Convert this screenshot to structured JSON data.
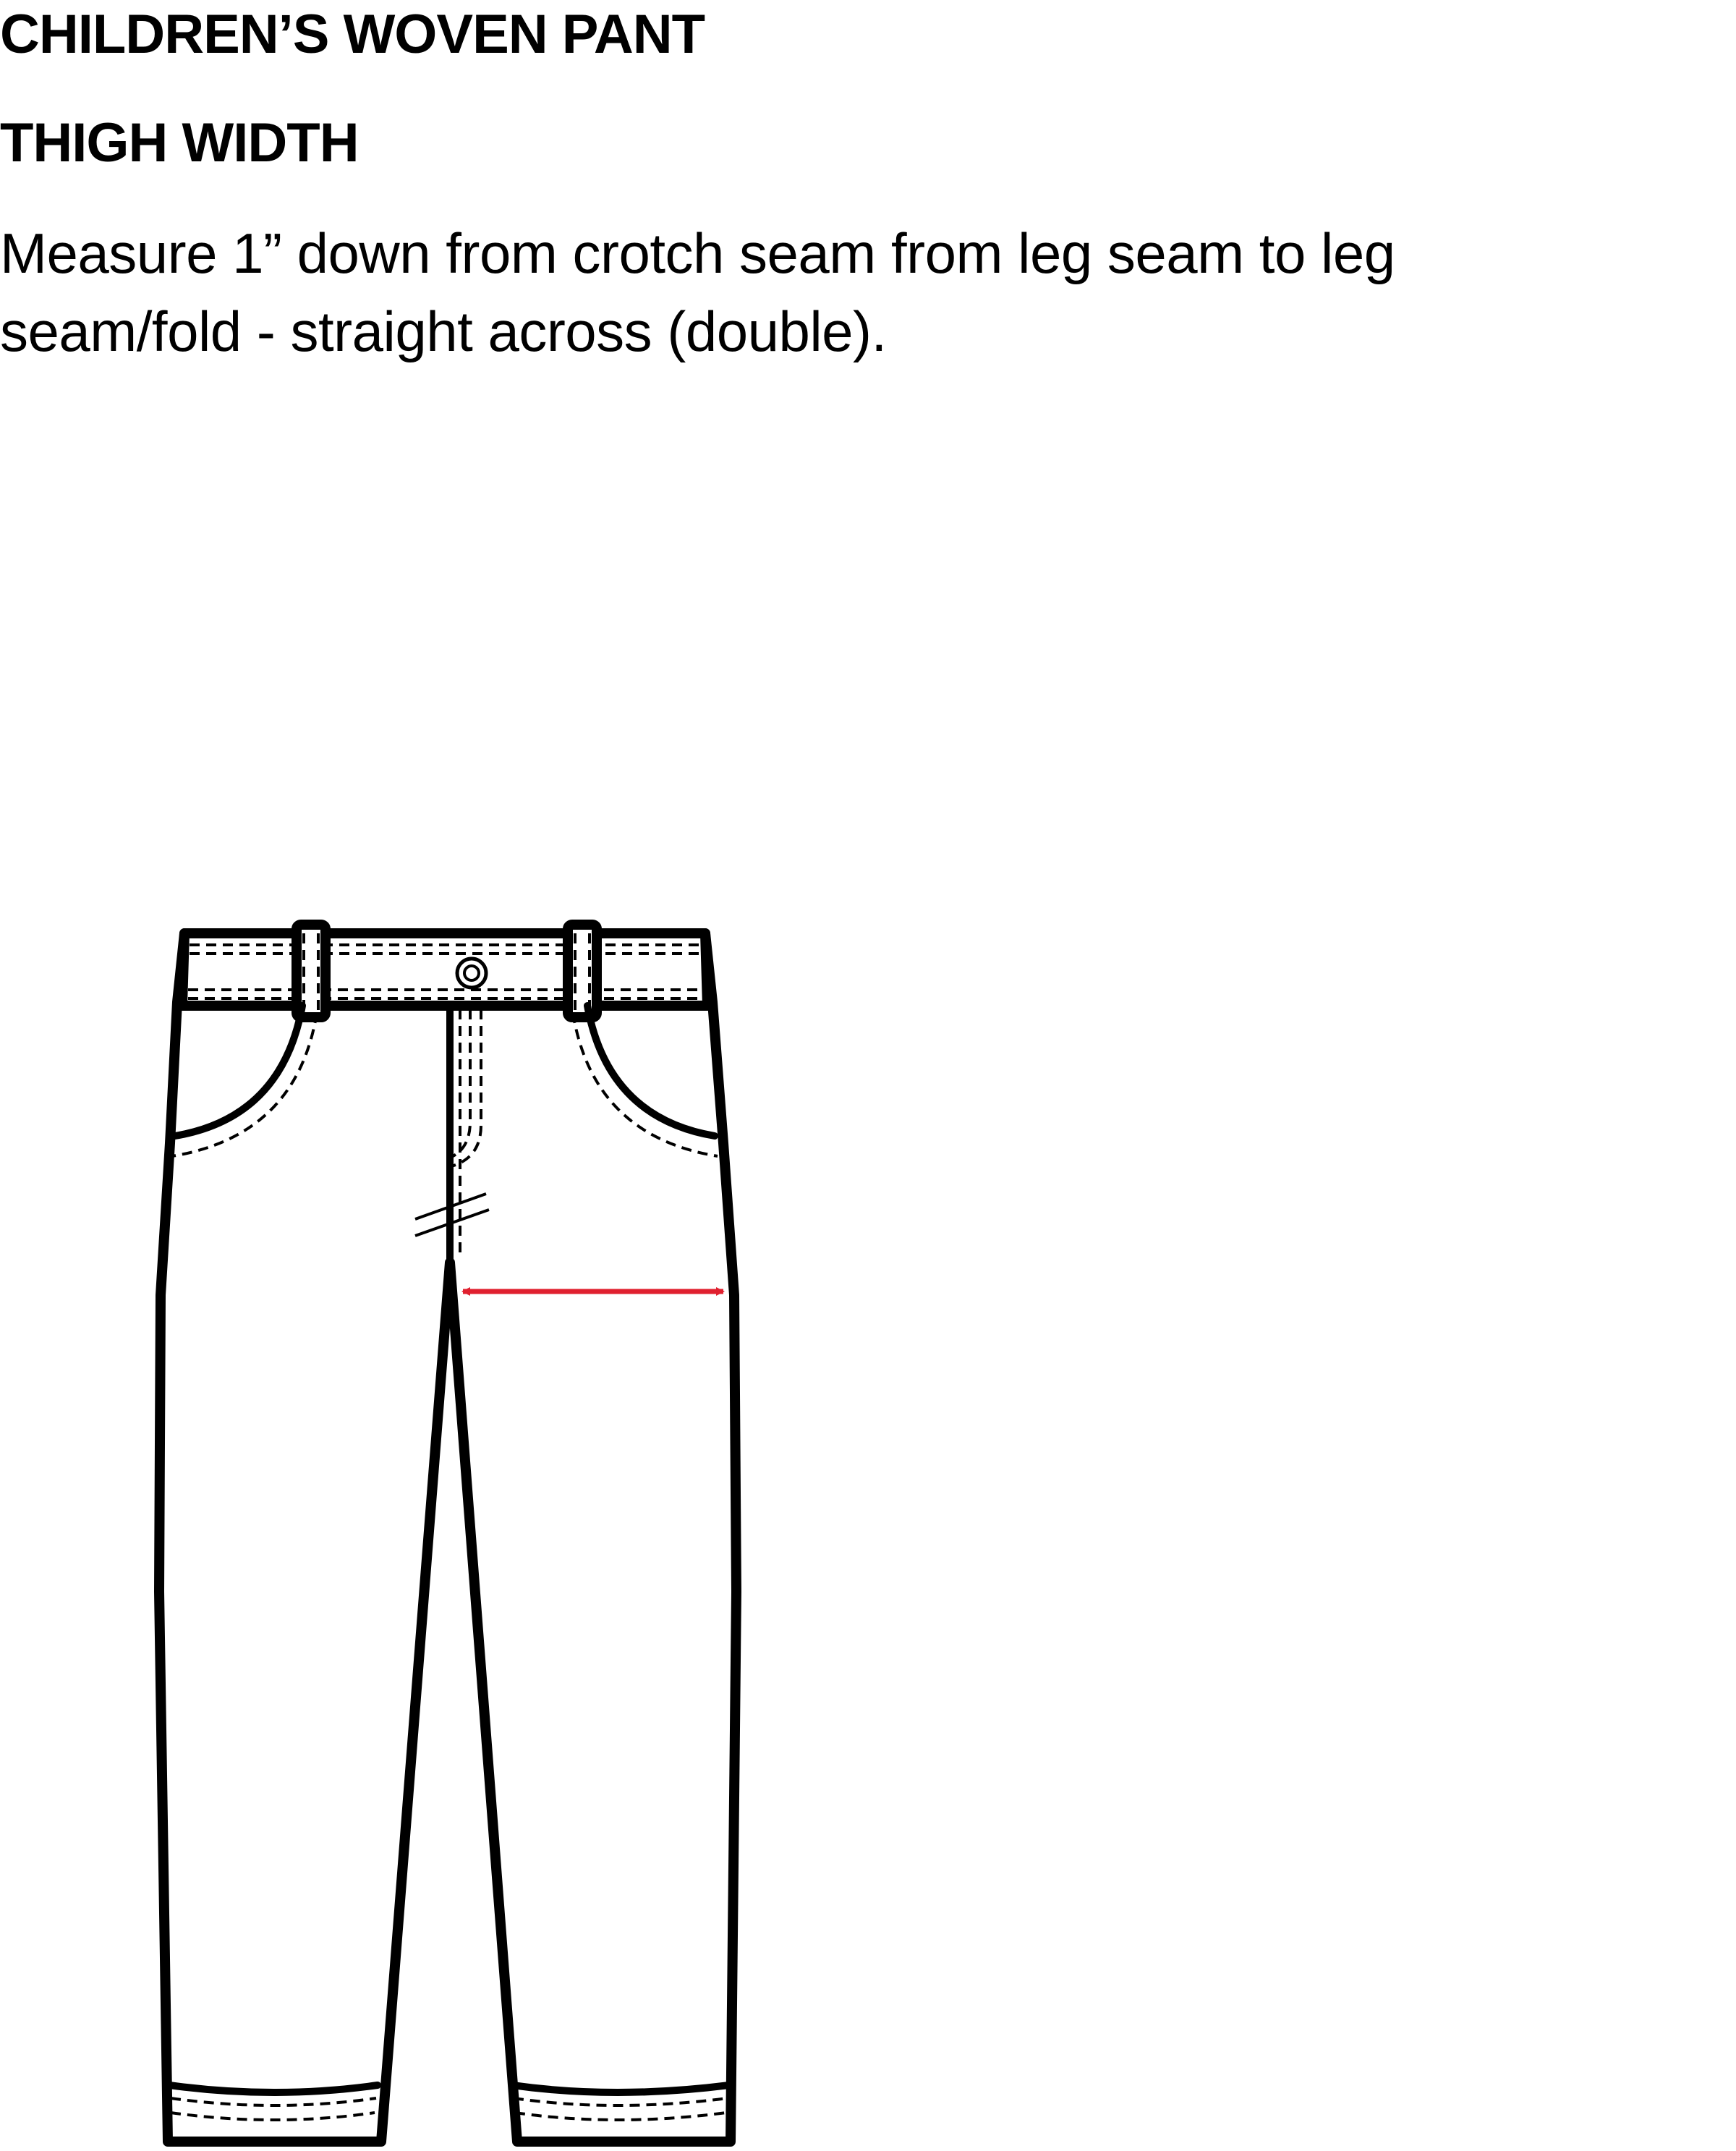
{
  "document": {
    "title": "CHILDREN’S WOVEN PANT",
    "section": "THIGH WIDTH",
    "instructions": "Measure 1” down from crotch seam from leg seam to leg seam/fold - straight across (double)."
  },
  "illustration": {
    "garment": "childrens-woven-pant-flat-sketch",
    "measurement": "thigh-width",
    "arrow_color": "#e0202f",
    "line_color": "#000000"
  }
}
